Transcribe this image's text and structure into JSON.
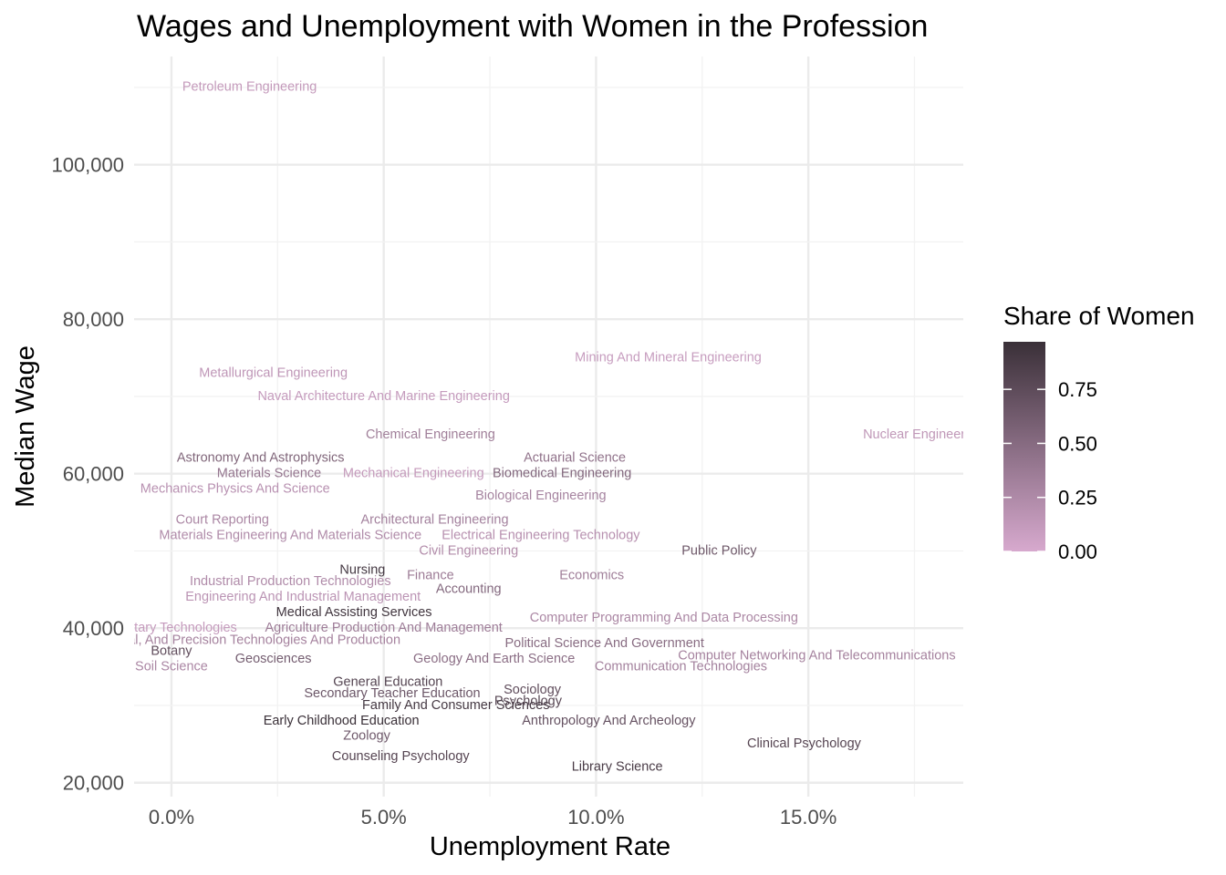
{
  "chart_data": {
    "type": "scatter",
    "title": "Wages and Unemployment with Women in the Profession",
    "xlabel": "Unemployment Rate",
    "ylabel": "Median Wage",
    "xlim": [
      -0.0088,
      0.1865
    ],
    "ylim": [
      18200,
      114000
    ],
    "x_ticks": [
      0.0,
      0.05,
      0.1,
      0.15
    ],
    "x_tick_labels": [
      "0.0%",
      "5.0%",
      "10.0%",
      "15.0%"
    ],
    "y_ticks": [
      20000,
      40000,
      60000,
      80000,
      100000
    ],
    "y_tick_labels": [
      "20,000",
      "40,000",
      "60,000",
      "80,000",
      "100,000"
    ],
    "grid": true,
    "marker": "text",
    "color_scale": {
      "title": "Share of Women",
      "low": "#d7a9ce",
      "high": "#3a3038",
      "range": [
        0,
        0.97
      ],
      "breaks": [
        0.0,
        0.25,
        0.5,
        0.75
      ],
      "break_labels": [
        "0.00",
        "0.25",
        "0.50",
        "0.75"
      ],
      "legend_position": "right"
    },
    "points": [
      {
        "label": "Petroleum Engineering",
        "x": 0.0184,
        "y": 110000,
        "share": 0.12
      },
      {
        "label": "Mining And Mineral Engineering",
        "x": 0.117,
        "y": 75000,
        "share": 0.1
      },
      {
        "label": "Metallurgical Engineering",
        "x": 0.024,
        "y": 73000,
        "share": 0.15
      },
      {
        "label": "Naval Architecture And Marine Engineering",
        "x": 0.05,
        "y": 70000,
        "share": 0.11
      },
      {
        "label": "Chemical Engineering",
        "x": 0.061,
        "y": 65000,
        "share": 0.34
      },
      {
        "label": "Nuclear Engineering",
        "x": 0.177,
        "y": 65000,
        "share": 0.14
      },
      {
        "label": "Actuarial Science",
        "x": 0.095,
        "y": 62000,
        "share": 0.44
      },
      {
        "label": "Astronomy And Astrophysics",
        "x": 0.021,
        "y": 62000,
        "share": 0.54
      },
      {
        "label": "Mechanical Engineering",
        "x": 0.057,
        "y": 60000,
        "share": 0.12
      },
      {
        "label": "Materials Science",
        "x": 0.023,
        "y": 60000,
        "share": 0.41
      },
      {
        "label": "Biomedical Engineering",
        "x": 0.092,
        "y": 60000,
        "share": 0.52
      },
      {
        "label": "Mechanics Physics And Science",
        "x": 0.015,
        "y": 58000,
        "share": 0.19
      },
      {
        "label": "Biological Engineering",
        "x": 0.087,
        "y": 57100,
        "share": 0.3
      },
      {
        "label": "Court Reporting",
        "x": 0.012,
        "y": 54000,
        "share": 0.27
      },
      {
        "label": "Architectural Engineering",
        "x": 0.062,
        "y": 54000,
        "share": 0.32
      },
      {
        "label": "Materials Engineering And Materials Science",
        "x": 0.028,
        "y": 52000,
        "share": 0.24
      },
      {
        "label": "Electrical Engineering Technology",
        "x": 0.087,
        "y": 52000,
        "share": 0.2
      },
      {
        "label": "Civil Engineering",
        "x": 0.07,
        "y": 50000,
        "share": 0.23
      },
      {
        "label": "Public Policy",
        "x": 0.129,
        "y": 50000,
        "share": 0.65
      },
      {
        "label": "Nursing",
        "x": 0.045,
        "y": 47500,
        "share": 0.9
      },
      {
        "label": "Finance",
        "x": 0.061,
        "y": 46800,
        "share": 0.36
      },
      {
        "label": "Economics",
        "x": 0.099,
        "y": 46800,
        "share": 0.34
      },
      {
        "label": "Industrial Production Technologies",
        "x": 0.028,
        "y": 46000,
        "share": 0.24
      },
      {
        "label": "Accounting",
        "x": 0.07,
        "y": 45000,
        "share": 0.52
      },
      {
        "label": "Engineering And Industrial Management",
        "x": 0.031,
        "y": 44000,
        "share": 0.17
      },
      {
        "label": "Medical Assisting Services",
        "x": 0.043,
        "y": 42000,
        "share": 0.93
      },
      {
        "label": "Computer Programming And Data Processing",
        "x": 0.116,
        "y": 41300,
        "share": 0.27
      },
      {
        "label": "Military Technologies",
        "x": 0.001,
        "y": 40000,
        "share": 0.11
      },
      {
        "label": "Agriculture Production And Management",
        "x": 0.05,
        "y": 40000,
        "share": 0.35
      },
      {
        "label": "Mechanical, Electrical, And Precision Technologies And Production",
        "x": 0.008,
        "y": 38400,
        "share": 0.31
      },
      {
        "label": "Political Science And Government",
        "x": 0.102,
        "y": 38000,
        "share": 0.49
      },
      {
        "label": "Botany",
        "x": 0.0,
        "y": 37000,
        "share": 0.73
      },
      {
        "label": "Computer Networking And Telecommunications",
        "x": 0.152,
        "y": 36400,
        "share": 0.31
      },
      {
        "label": "Geosciences",
        "x": 0.024,
        "y": 36000,
        "share": 0.61
      },
      {
        "label": "Geology And Earth Science",
        "x": 0.076,
        "y": 36000,
        "share": 0.47
      },
      {
        "label": "Soil Science",
        "x": 0.0,
        "y": 35000,
        "share": 0.27
      },
      {
        "label": "Communication Technologies",
        "x": 0.12,
        "y": 35000,
        "share": 0.32
      },
      {
        "label": "General Education",
        "x": 0.051,
        "y": 33000,
        "share": 0.81
      },
      {
        "label": "Sociology",
        "x": 0.085,
        "y": 32000,
        "share": 0.73
      },
      {
        "label": "Secondary Teacher Education",
        "x": 0.052,
        "y": 31500,
        "share": 0.66
      },
      {
        "label": "Psychology",
        "x": 0.084,
        "y": 30500,
        "share": 0.78
      },
      {
        "label": "Family And Consumer Sciences",
        "x": 0.067,
        "y": 30000,
        "share": 0.9
      },
      {
        "label": "Early Childhood Education",
        "x": 0.04,
        "y": 28000,
        "share": 0.97
      },
      {
        "label": "Anthropology And Archeology",
        "x": 0.103,
        "y": 28000,
        "share": 0.7
      },
      {
        "label": "Zoology",
        "x": 0.046,
        "y": 26000,
        "share": 0.64
      },
      {
        "label": "Clinical Psychology",
        "x": 0.149,
        "y": 25000,
        "share": 0.8
      },
      {
        "label": "Counseling Psychology",
        "x": 0.054,
        "y": 23400,
        "share": 0.8
      },
      {
        "label": "Library Science",
        "x": 0.105,
        "y": 22000,
        "share": 0.88
      }
    ]
  }
}
